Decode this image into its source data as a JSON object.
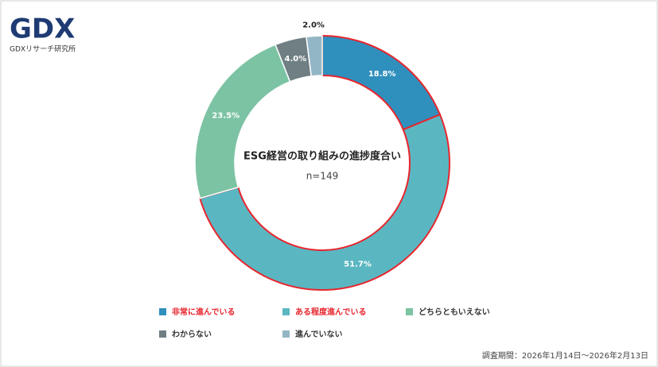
{
  "brand": {
    "logo": "GDX",
    "name": "GDXリサーチ研究所"
  },
  "chart_data": {
    "type": "donut",
    "title": "ESG経営の取り組みの進捗度合い",
    "subtitle": "n=149",
    "categories": [
      "非常に進んでいる",
      "ある程度進んでいる",
      "どちらともいえない",
      "わからない",
      "進んでいない"
    ],
    "values": [
      18.8,
      51.7,
      23.5,
      4.0,
      2.0
    ],
    "value_labels": [
      "18.8%",
      "51.7%",
      "23.5%",
      "4.0%",
      "2.0%"
    ],
    "colors": [
      "#2f8fbd",
      "#5ab7c2",
      "#7cc3a3",
      "#6f7f84",
      "#93b6c6"
    ],
    "highlighted": [
      true,
      true,
      false,
      false,
      false
    ],
    "highlight_color": "#e8262e",
    "legend": "bottom"
  },
  "footnote": "調査期間：2026年1月14日～2026年2月13日"
}
